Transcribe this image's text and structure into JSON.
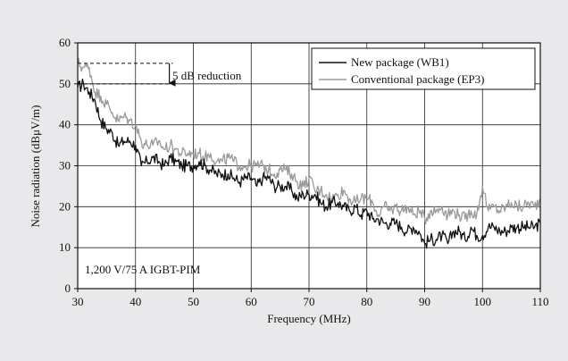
{
  "chart_data": {
    "type": "line",
    "title": "",
    "xlabel": "Frequency (MHz)",
    "ylabel": "Noise radiation (dBμV/m)",
    "xlim": [
      30,
      110
    ],
    "ylim": [
      0,
      60
    ],
    "xticks": [
      30,
      40,
      50,
      60,
      70,
      80,
      90,
      100,
      110
    ],
    "yticks": [
      0,
      10,
      20,
      30,
      40,
      50,
      60
    ],
    "grid": true,
    "legend_position": "top-right",
    "annotations": {
      "reduction_label": "5 dB reduction",
      "device_label": "1,200 V/75 A IGBT-PIM",
      "upper_level": 55,
      "lower_level": 50
    },
    "series": [
      {
        "name": "New package (WB1)",
        "color": "#111111",
        "x": [
          30,
          31,
          32,
          33,
          34,
          35,
          36,
          37,
          38,
          39,
          40,
          41,
          42,
          43,
          44,
          45,
          46,
          47,
          48,
          49,
          50,
          51,
          52,
          53,
          54,
          55,
          56,
          57,
          58,
          59,
          60,
          61,
          62,
          63,
          64,
          65,
          66,
          67,
          68,
          69,
          70,
          71,
          72,
          73,
          74,
          75,
          76,
          77,
          78,
          79,
          80,
          81,
          82,
          83,
          84,
          85,
          86,
          87,
          88,
          89,
          90,
          91,
          92,
          93,
          94,
          95,
          96,
          97,
          98,
          99,
          100,
          101,
          102,
          103,
          104,
          105,
          106,
          107,
          108,
          109,
          110
        ],
        "y": [
          49,
          50,
          48,
          46,
          41,
          39,
          38,
          35,
          36,
          36,
          35,
          30,
          31,
          32,
          31,
          30,
          32,
          31,
          30,
          30,
          30,
          31,
          30,
          29,
          28,
          28,
          28,
          27,
          26,
          27,
          27,
          25,
          27,
          27,
          25,
          25,
          25,
          24,
          22,
          23,
          23,
          23,
          21,
          20,
          21,
          21,
          20,
          19,
          20,
          18,
          19,
          17,
          17,
          16,
          16,
          16,
          15,
          14,
          15,
          14,
          11,
          12,
          12,
          13,
          11,
          14,
          14,
          12,
          15,
          13,
          13,
          15,
          15,
          14,
          14,
          15,
          15,
          15,
          15,
          15,
          16
        ]
      },
      {
        "name": "Conventional package (EP3)",
        "color": "#9a9a9a",
        "x": [
          30,
          31,
          32,
          33,
          34,
          35,
          36,
          37,
          38,
          39,
          40,
          41,
          42,
          43,
          44,
          45,
          46,
          47,
          48,
          49,
          50,
          51,
          52,
          53,
          54,
          55,
          56,
          57,
          58,
          59,
          60,
          61,
          62,
          63,
          64,
          65,
          66,
          67,
          68,
          69,
          70,
          71,
          72,
          73,
          74,
          75,
          76,
          77,
          78,
          79,
          80,
          81,
          82,
          83,
          84,
          85,
          86,
          87,
          88,
          89,
          90,
          91,
          92,
          93,
          94,
          95,
          96,
          97,
          98,
          99,
          100,
          101,
          102,
          103,
          104,
          105,
          106,
          107,
          108,
          109,
          110
        ],
        "y": [
          55,
          54,
          54,
          48,
          47,
          45,
          43,
          41,
          42,
          41,
          40,
          36,
          35,
          35,
          36,
          34,
          35,
          34,
          33,
          33,
          33,
          33,
          32,
          33,
          31,
          31,
          32,
          31,
          30,
          30,
          30,
          30,
          30,
          29,
          28,
          29,
          29,
          28,
          26,
          25,
          27,
          24,
          24,
          23,
          22,
          23,
          24,
          22,
          21,
          22,
          22,
          21,
          18,
          20,
          19,
          20,
          19,
          20,
          18,
          19,
          17,
          19,
          19,
          20,
          18,
          19,
          18,
          17,
          19,
          18,
          25,
          19,
          20,
          19,
          20,
          21,
          20,
          20,
          21,
          20,
          22
        ]
      }
    ]
  }
}
